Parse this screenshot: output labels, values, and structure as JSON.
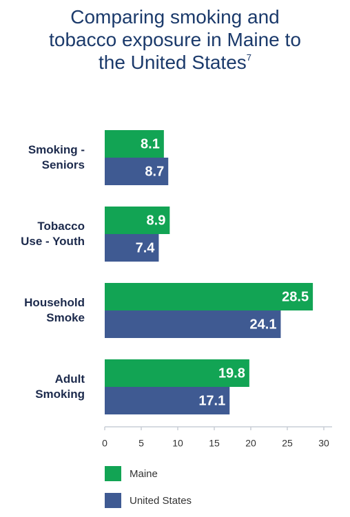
{
  "chart_data": {
    "type": "bar",
    "orientation": "horizontal",
    "title": "Comparing smoking and tobacco exposure in Maine to the United States",
    "title_note": "7",
    "categories": [
      "Smoking - Seniors",
      "Tobacco Use - Youth",
      "Household Smoke",
      "Adult Smoking"
    ],
    "series": [
      {
        "name": "Maine",
        "color": "#12a454",
        "values": [
          8.1,
          8.9,
          28.5,
          19.8
        ]
      },
      {
        "name": "United States",
        "color": "#3f5a92",
        "values": [
          8.7,
          7.4,
          24.1,
          17.1
        ]
      }
    ],
    "xlim": [
      0,
      30
    ],
    "xticks": [
      0,
      5,
      10,
      15,
      20,
      25,
      30
    ],
    "grid": false
  }
}
